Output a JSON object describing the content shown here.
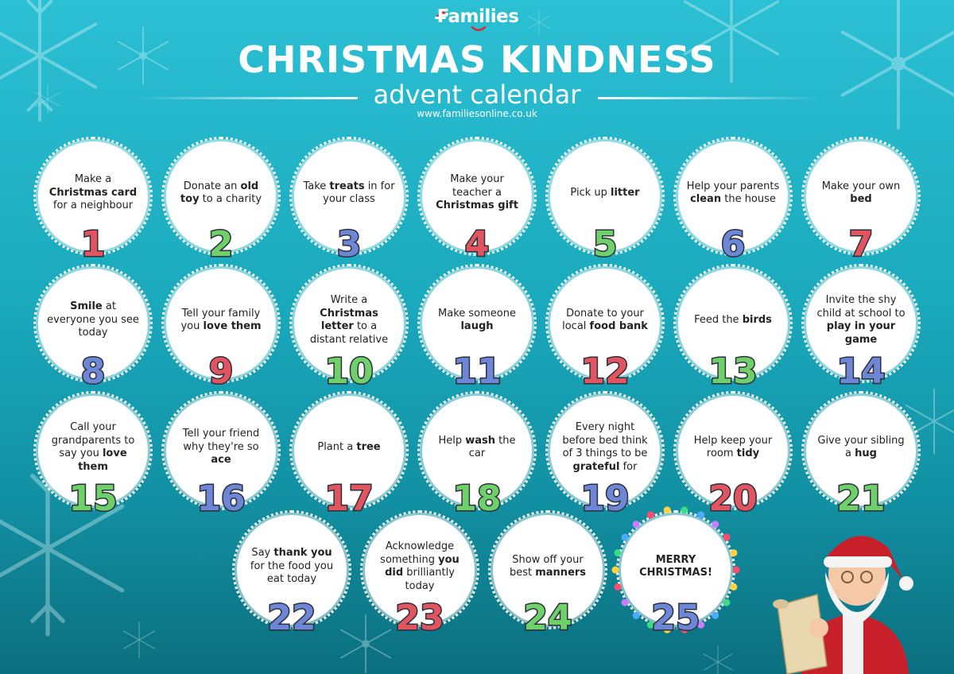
{
  "header": {
    "logo_text": "Families",
    "title": "CHRISTMAS KINDNESS",
    "subtitle": "advent calendar",
    "website": "www.familiesonline.co.uk"
  },
  "colors": {
    "background": "#1aa9bd",
    "red": "#e05560",
    "green": "#6fd06a",
    "blue": "#6e86d6"
  },
  "days": [
    {
      "number": "1",
      "color": "#e05560",
      "parts": [
        {
          "t": "Make a "
        },
        {
          "t": "Christmas card",
          "b": true
        },
        {
          "t": " for a neighbour"
        }
      ]
    },
    {
      "number": "2",
      "color": "#6fd06a",
      "parts": [
        {
          "t": "Donate an "
        },
        {
          "t": "old toy",
          "b": true
        },
        {
          "t": " to a charity"
        }
      ]
    },
    {
      "number": "3",
      "color": "#6e86d6",
      "parts": [
        {
          "t": "Take "
        },
        {
          "t": "treats",
          "b": true
        },
        {
          "t": " in for your class"
        }
      ]
    },
    {
      "number": "4",
      "color": "#e05560",
      "parts": [
        {
          "t": "Make your teacher a "
        },
        {
          "t": "Christmas gift",
          "b": true
        }
      ]
    },
    {
      "number": "5",
      "color": "#6fd06a",
      "parts": [
        {
          "t": "Pick up "
        },
        {
          "t": "litter",
          "b": true
        }
      ]
    },
    {
      "number": "6",
      "color": "#6e86d6",
      "parts": [
        {
          "t": "Help your parents "
        },
        {
          "t": "clean",
          "b": true
        },
        {
          "t": " the house"
        }
      ]
    },
    {
      "number": "7",
      "color": "#e05560",
      "parts": [
        {
          "t": "Make your own "
        },
        {
          "t": "bed",
          "b": true
        }
      ]
    },
    {
      "number": "8",
      "color": "#6e86d6",
      "parts": [
        {
          "t": "Smile",
          "b": true
        },
        {
          "t": " at everyone you see today"
        }
      ]
    },
    {
      "number": "9",
      "color": "#e05560",
      "parts": [
        {
          "t": "Tell your family you "
        },
        {
          "t": "love them",
          "b": true
        }
      ]
    },
    {
      "number": "10",
      "color": "#6fd06a",
      "parts": [
        {
          "t": "Write a "
        },
        {
          "t": "Christmas letter",
          "b": true
        },
        {
          "t": " to a distant relative"
        }
      ]
    },
    {
      "number": "11",
      "color": "#6e86d6",
      "parts": [
        {
          "t": "Make someone "
        },
        {
          "t": "laugh",
          "b": true
        }
      ]
    },
    {
      "number": "12",
      "color": "#e05560",
      "parts": [
        {
          "t": "Donate to your local "
        },
        {
          "t": "food bank",
          "b": true
        }
      ]
    },
    {
      "number": "13",
      "color": "#6fd06a",
      "parts": [
        {
          "t": "Feed the "
        },
        {
          "t": "birds",
          "b": true
        }
      ]
    },
    {
      "number": "14",
      "color": "#6e86d6",
      "parts": [
        {
          "t": "Invite the shy child at school to "
        },
        {
          "t": "play in your game",
          "b": true
        }
      ]
    },
    {
      "number": "15",
      "color": "#6fd06a",
      "parts": [
        {
          "t": "Call your grandparents to say you "
        },
        {
          "t": "love them",
          "b": true
        }
      ]
    },
    {
      "number": "16",
      "color": "#6e86d6",
      "parts": [
        {
          "t": "Tell your friend why they're so "
        },
        {
          "t": "ace",
          "b": true
        }
      ]
    },
    {
      "number": "17",
      "color": "#e05560",
      "parts": [
        {
          "t": "Plant a "
        },
        {
          "t": "tree",
          "b": true
        }
      ]
    },
    {
      "number": "18",
      "color": "#6fd06a",
      "parts": [
        {
          "t": "Help "
        },
        {
          "t": "wash",
          "b": true
        },
        {
          "t": " the car"
        }
      ]
    },
    {
      "number": "19",
      "color": "#6e86d6",
      "parts": [
        {
          "t": "Every night before bed think of 3 things to be "
        },
        {
          "t": "grateful",
          "b": true
        },
        {
          "t": " for"
        }
      ]
    },
    {
      "number": "20",
      "color": "#e05560",
      "parts": [
        {
          "t": "Help keep your room "
        },
        {
          "t": "tidy",
          "b": true
        }
      ]
    },
    {
      "number": "21",
      "color": "#6fd06a",
      "parts": [
        {
          "t": "Give your sibling a "
        },
        {
          "t": "hug",
          "b": true
        }
      ]
    },
    {
      "number": "22",
      "color": "#6e86d6",
      "parts": [
        {
          "t": "Say "
        },
        {
          "t": "thank you",
          "b": true
        },
        {
          "t": " for the food you eat today"
        }
      ]
    },
    {
      "number": "23",
      "color": "#e05560",
      "parts": [
        {
          "t": "Acknowledge something "
        },
        {
          "t": "you did",
          "b": true
        },
        {
          "t": " brilliantly today"
        }
      ]
    },
    {
      "number": "24",
      "color": "#6fd06a",
      "parts": [
        {
          "t": "Show off your best "
        },
        {
          "t": "manners",
          "b": true
        }
      ]
    },
    {
      "number": "25",
      "color": "#6e86d6",
      "parts": [
        {
          "t": "MERRY CHRISTMAS!",
          "b": true
        }
      ]
    }
  ]
}
